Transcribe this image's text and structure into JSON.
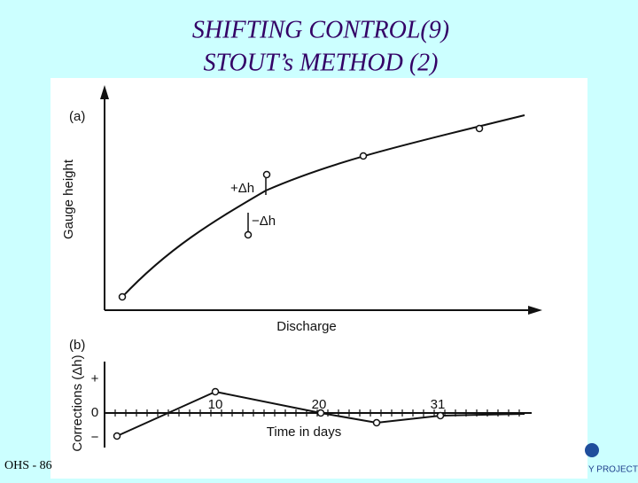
{
  "slide": {
    "title_lines": [
      "SHIFTING CONTROL(9)",
      "STOUT’s METHOD (2)"
    ],
    "footer": "OHS - 86",
    "logo_text": "Y PROJECT",
    "figure": {
      "panel_a": {
        "label": "(a)",
        "y_label": "Gauge height",
        "x_label": "Discharge",
        "plus_label": "+Δh",
        "minus_label": "−Δh"
      },
      "panel_b": {
        "label": "(b)",
        "y_label": "Corrections (Δh)",
        "x_label": "Time in days",
        "y_marks": [
          "+",
          "0",
          "−"
        ],
        "x_ticks": [
          10,
          20,
          31
        ]
      }
    }
  }
}
